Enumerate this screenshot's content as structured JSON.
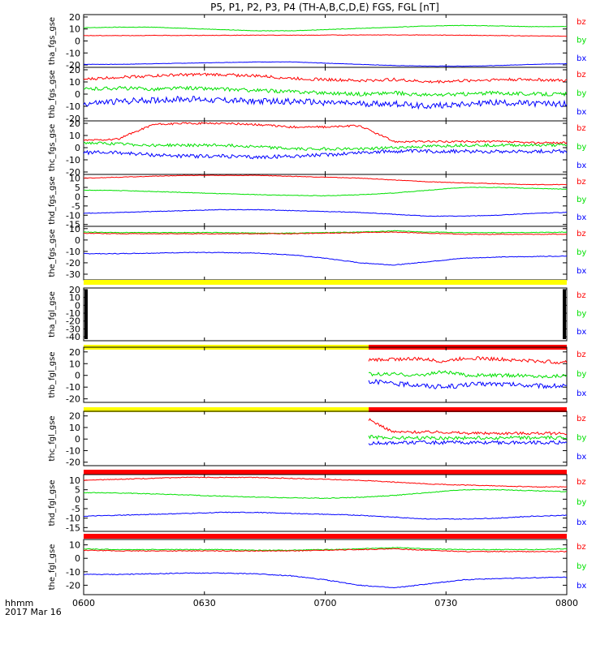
{
  "title": "P5, P1, P2, P3, P4 (TH-A,B,C,D,E) FGS, FGL [nT]",
  "time_axis": {
    "label_line1": "hhmm",
    "label_line2": "2017 Mar 16",
    "ticks": [
      "0600",
      "0630",
      "0700",
      "0730",
      "0800"
    ]
  },
  "colors": {
    "bz": "#ff0000",
    "by": "#00e000",
    "bx": "#0000ff",
    "flag_yellow": "#ffff00",
    "flag_red": "#ff0000",
    "axis": "#000000"
  },
  "chart_data": [
    {
      "type": "line",
      "panel_label": "tha_fgs_gse",
      "yticks": [
        20,
        10,
        0,
        -10,
        -20
      ],
      "ylim": [
        -22,
        22
      ],
      "legend": [
        "bz",
        "by",
        "bx"
      ],
      "flag_bar": [],
      "series": [
        {
          "name": "bz",
          "data_start": 0,
          "noise": 0.2,
          "values": [
            4.5,
            4.5,
            4.6,
            4.6,
            4.7,
            4.8,
            4.8,
            4.9,
            5.0,
            5.0,
            5.0,
            4.8,
            4.5,
            4.2,
            4.0
          ]
        },
        {
          "name": "by",
          "data_start": 0,
          "noise": 0.2,
          "values": [
            11,
            11.5,
            11.5,
            10.5,
            9.5,
            8.5,
            8.5,
            9.5,
            10.5,
            11.5,
            12.5,
            13,
            12.5,
            12,
            12
          ]
        },
        {
          "name": "bx",
          "data_start": 0,
          "noise": 0.15,
          "values": [
            -19.5,
            -19.5,
            -19,
            -18.5,
            -18,
            -17.5,
            -17.5,
            -18.5,
            -19.5,
            -20.5,
            -21,
            -21,
            -20.5,
            -19.5,
            -19
          ]
        }
      ]
    },
    {
      "type": "line",
      "panel_label": "thb_fgs_gse",
      "yticks": [
        20,
        10,
        0,
        -10,
        -20
      ],
      "ylim": [
        -22,
        22
      ],
      "legend": [
        "bz",
        "by",
        "bx"
      ],
      "flag_bar": [],
      "series": [
        {
          "name": "bz",
          "data_start": 0,
          "noise": 1.2,
          "values": [
            12,
            14,
            15,
            16,
            16,
            15,
            13,
            12,
            11,
            12,
            10,
            11,
            12,
            12,
            11
          ]
        },
        {
          "name": "by",
          "data_start": 0,
          "noise": 1.5,
          "values": [
            4,
            5,
            4,
            5,
            4,
            3,
            2,
            1,
            0,
            1,
            -1,
            0,
            1,
            0,
            0
          ]
        },
        {
          "name": "bx",
          "data_start": 0,
          "noise": 2.5,
          "values": [
            -8,
            -6,
            -5,
            -4,
            -5,
            -6,
            -6,
            -7,
            -8,
            -8,
            -10,
            -8,
            -7,
            -8,
            -8
          ]
        }
      ]
    },
    {
      "type": "line",
      "panel_label": "thc_fgs_gse",
      "yticks": [
        20,
        10,
        0,
        -10,
        -20
      ],
      "ylim": [
        -22,
        22
      ],
      "legend": [
        "bz",
        "by",
        "bx"
      ],
      "flag_bar": [],
      "series": [
        {
          "name": "bz",
          "data_start": 0,
          "noise": 0.8,
          "values": [
            6,
            7,
            19,
            20,
            20,
            19,
            17,
            17,
            18,
            5,
            5,
            5,
            5,
            4,
            4
          ]
        },
        {
          "name": "by",
          "data_start": 0,
          "noise": 1.2,
          "values": [
            4,
            3,
            2,
            2,
            2,
            1,
            -1,
            -1,
            -1,
            0,
            1,
            2,
            2,
            2,
            2
          ]
        },
        {
          "name": "bx",
          "data_start": 0,
          "noise": 1.5,
          "values": [
            -4,
            -4,
            -6,
            -7,
            -7,
            -8,
            -7,
            -6,
            -4,
            -3,
            -3,
            -3,
            -3,
            -3,
            -3
          ]
        }
      ]
    },
    {
      "type": "line",
      "panel_label": "thd_fgs_gse",
      "yticks": [
        10,
        5,
        0,
        -5,
        -10,
        -15
      ],
      "ylim": [
        -16,
        12
      ],
      "legend": [
        "bz",
        "by",
        "bx"
      ],
      "flag_bar": [],
      "series": [
        {
          "name": "bz",
          "data_start": 0,
          "noise": 0.15,
          "values": [
            10,
            10.5,
            11,
            11.5,
            11.5,
            11.5,
            11,
            10.5,
            10,
            9,
            8,
            7.5,
            7,
            6.5,
            6.5
          ]
        },
        {
          "name": "by",
          "data_start": 0,
          "noise": 0.15,
          "values": [
            3.5,
            3.3,
            2.8,
            2.2,
            1.6,
            1.1,
            0.7,
            0.5,
            1.0,
            2.0,
            3.5,
            5.0,
            5.0,
            4.5,
            4.0
          ]
        },
        {
          "name": "bx",
          "data_start": 0,
          "noise": 0.15,
          "values": [
            -9,
            -8.5,
            -8,
            -7.5,
            -7,
            -7,
            -7.5,
            -8,
            -8.5,
            -9.5,
            -10.5,
            -10.5,
            -10,
            -9,
            -8.5
          ]
        }
      ]
    },
    {
      "type": "line",
      "panel_label": "the_fgs_gse",
      "yticks": [
        10,
        0,
        -10,
        -20,
        -30
      ],
      "ylim": [
        -35,
        12
      ],
      "legend": [
        "bz",
        "by",
        "bx"
      ],
      "flag_bar": [],
      "series": [
        {
          "name": "bz",
          "data_start": 0,
          "noise": 0.3,
          "values": [
            6,
            5.5,
            5.5,
            5.5,
            5.5,
            5.5,
            5.5,
            6,
            6.5,
            7,
            6,
            5,
            5,
            5,
            5
          ]
        },
        {
          "name": "by",
          "data_start": 0,
          "noise": 0.3,
          "values": [
            7,
            6.5,
            6.5,
            6.5,
            6.5,
            6,
            6,
            6.5,
            7,
            8,
            7,
            6.5,
            6.5,
            6.5,
            7
          ]
        },
        {
          "name": "bx",
          "data_start": 0,
          "noise": 0.3,
          "values": [
            -12,
            -12,
            -11.5,
            -11,
            -11,
            -11.5,
            -13,
            -16,
            -20,
            -22,
            -19,
            -16,
            -15,
            -14.5,
            -14
          ]
        }
      ]
    },
    {
      "type": "line",
      "panel_label": "tha_fgl_gse",
      "yticks": [
        20,
        10,
        0,
        -10,
        -20,
        -30,
        -40
      ],
      "ylim": [
        -45,
        22
      ],
      "legend": [
        "bz",
        "by",
        "bx"
      ],
      "flag_bar": [
        {
          "from": 0,
          "to": 1,
          "color": "yellow"
        }
      ],
      "series": []
    },
    {
      "type": "line",
      "panel_label": "thb_fgl_gse",
      "yticks": [
        20,
        10,
        0,
        -10,
        -20
      ],
      "ylim": [
        -23,
        24
      ],
      "legend": [
        "bz",
        "by",
        "bx"
      ],
      "flag_bar": [
        {
          "from": 0,
          "to": 0.59,
          "color": "yellow"
        },
        {
          "from": 0.59,
          "to": 1,
          "color": "red"
        }
      ],
      "series": [
        {
          "name": "bz",
          "data_start": 0.59,
          "noise": 1.5,
          "values": [
            13,
            14,
            14,
            12,
            15,
            14,
            13,
            12,
            11
          ]
        },
        {
          "name": "by",
          "data_start": 0.59,
          "noise": 1.5,
          "values": [
            1,
            1,
            0,
            3,
            0,
            0,
            0,
            -1,
            0
          ]
        },
        {
          "name": "bx",
          "data_start": 0.59,
          "noise": 2.0,
          "values": [
            -5,
            -7,
            -8,
            -10,
            -8,
            -7,
            -8,
            -9,
            -9
          ]
        }
      ]
    },
    {
      "type": "line",
      "panel_label": "thc_fgl_gse",
      "yticks": [
        20,
        10,
        0,
        -10,
        -20
      ],
      "ylim": [
        -23,
        24
      ],
      "legend": [
        "bz",
        "by",
        "bx"
      ],
      "flag_bar": [
        {
          "from": 0,
          "to": 0.59,
          "color": "yellow"
        },
        {
          "from": 0.59,
          "to": 1,
          "color": "red"
        }
      ],
      "series": [
        {
          "name": "bz",
          "data_start": 0.59,
          "noise": 1.2,
          "values": [
            17,
            6,
            6,
            6,
            5,
            5,
            5,
            5,
            5
          ]
        },
        {
          "name": "by",
          "data_start": 0.59,
          "noise": 1.5,
          "values": [
            2,
            1,
            1,
            1,
            1,
            1,
            1,
            1,
            1
          ]
        },
        {
          "name": "bx",
          "data_start": 0.59,
          "noise": 1.5,
          "values": [
            -4,
            -3,
            -3,
            -3,
            -3,
            -3,
            -3,
            -3,
            -3
          ]
        }
      ]
    },
    {
      "type": "line",
      "panel_label": "thd_fgl_gse",
      "yticks": [
        10,
        5,
        0,
        -5,
        -10,
        -15
      ],
      "ylim": [
        -17,
        13
      ],
      "legend": [
        "bz",
        "by",
        "bx"
      ],
      "flag_bar": [
        {
          "from": 0,
          "to": 1,
          "color": "red"
        }
      ],
      "series": [
        {
          "name": "bz",
          "data_start": 0,
          "noise": 0.2,
          "values": [
            10,
            10.5,
            11,
            11.5,
            11.5,
            11.5,
            11,
            10.5,
            10,
            9,
            8,
            7.5,
            7,
            6.5,
            6.5
          ]
        },
        {
          "name": "by",
          "data_start": 0,
          "noise": 0.2,
          "values": [
            3.5,
            3.3,
            2.8,
            2.2,
            1.6,
            1.1,
            0.7,
            0.5,
            1.0,
            2.0,
            3.5,
            5.0,
            5.0,
            4.5,
            4.0
          ]
        },
        {
          "name": "bx",
          "data_start": 0,
          "noise": 0.2,
          "values": [
            -9,
            -8.5,
            -8,
            -7.5,
            -7,
            -7,
            -7.5,
            -8,
            -8.5,
            -9.5,
            -10.5,
            -10.5,
            -10,
            -9,
            -8.5
          ]
        }
      ]
    },
    {
      "type": "line",
      "panel_label": "the_fgl_gse",
      "yticks": [
        10,
        0,
        -10,
        -20
      ],
      "ylim": [
        -27,
        14
      ],
      "legend": [
        "bz",
        "by",
        "bx"
      ],
      "flag_bar": [
        {
          "from": 0,
          "to": 1,
          "color": "red"
        }
      ],
      "series": [
        {
          "name": "bz",
          "data_start": 0,
          "noise": 0.3,
          "values": [
            6,
            5.5,
            5.5,
            5.5,
            5.5,
            5.5,
            5.5,
            6,
            6.5,
            7,
            6,
            5,
            5,
            5,
            5
          ]
        },
        {
          "name": "by",
          "data_start": 0,
          "noise": 0.3,
          "values": [
            7,
            6.5,
            6.5,
            6.5,
            6.5,
            6,
            6,
            6.5,
            7,
            8,
            7,
            6.5,
            6.5,
            6.5,
            7
          ]
        },
        {
          "name": "bx",
          "data_start": 0,
          "noise": 0.3,
          "values": [
            -12,
            -12,
            -11.5,
            -11,
            -11,
            -11.5,
            -13,
            -16,
            -20,
            -22,
            -19,
            -16,
            -15,
            -14.5,
            -14
          ]
        }
      ]
    }
  ]
}
